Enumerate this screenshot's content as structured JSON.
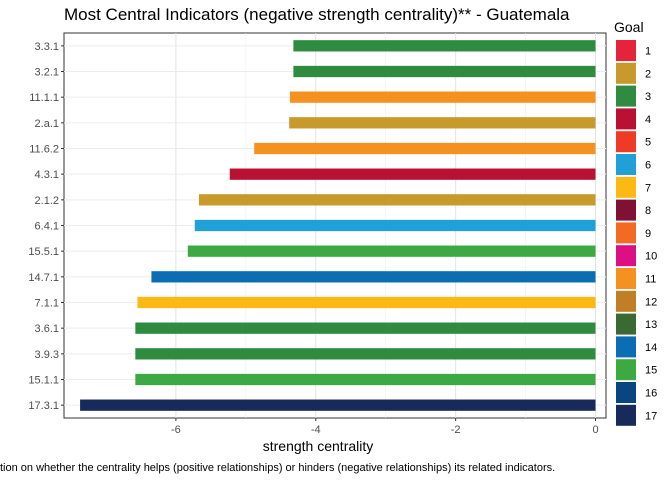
{
  "chart_data": {
    "type": "bar",
    "orientation": "horizontal",
    "title": "Most Central Indicators (negative strength centrality)** - Guatemala",
    "xlabel": "strength centrality",
    "ylabel": "",
    "xlim": [
      -7.6,
      0.15
    ],
    "xticks": [
      -6,
      -4,
      -2,
      0
    ],
    "xtick_labels": [
      "-6",
      "-4",
      "-2",
      "0"
    ],
    "grid": true,
    "legend_position": "right",
    "caption": "tion on whether the centrality helps (positive relationships) or hinders (negative relationships) its related indicators.",
    "bars": [
      {
        "indicator": "3.3.1",
        "value": -4.32,
        "goal": "3"
      },
      {
        "indicator": "3.2.1",
        "value": -4.32,
        "goal": "3"
      },
      {
        "indicator": "11.1.1",
        "value": -4.37,
        "goal": "11"
      },
      {
        "indicator": "2.a.1",
        "value": -4.38,
        "goal": "2"
      },
      {
        "indicator": "11.6.2",
        "value": -4.88,
        "goal": "11"
      },
      {
        "indicator": "4.3.1",
        "value": -5.23,
        "goal": "4"
      },
      {
        "indicator": "2.1.2",
        "value": -5.67,
        "goal": "2"
      },
      {
        "indicator": "6.4.1",
        "value": -5.73,
        "goal": "6"
      },
      {
        "indicator": "15.5.1",
        "value": -5.83,
        "goal": "15"
      },
      {
        "indicator": "14.7.1",
        "value": -6.35,
        "goal": "14"
      },
      {
        "indicator": "7.1.1",
        "value": -6.55,
        "goal": "7"
      },
      {
        "indicator": "3.6.1",
        "value": -6.58,
        "goal": "3"
      },
      {
        "indicator": "3.9.3",
        "value": -6.58,
        "goal": "3"
      },
      {
        "indicator": "15.1.1",
        "value": -6.58,
        "goal": "15"
      },
      {
        "indicator": "17.3.1",
        "value": -7.37,
        "goal": "17"
      }
    ],
    "legend": {
      "title": "Goal",
      "items": [
        {
          "label": "1",
          "color": "#E5243B"
        },
        {
          "label": "2",
          "color": "#C89A2C"
        },
        {
          "label": "3",
          "color": "#2E8B3F"
        },
        {
          "label": "4",
          "color": "#B91133"
        },
        {
          "label": "5",
          "color": "#EF3A25"
        },
        {
          "label": "6",
          "color": "#1FA1D8"
        },
        {
          "label": "7",
          "color": "#FDB913"
        },
        {
          "label": "8",
          "color": "#7F1234"
        },
        {
          "label": "9",
          "color": "#F26A24"
        },
        {
          "label": "10",
          "color": "#DD0F85"
        },
        {
          "label": "11",
          "color": "#F59121"
        },
        {
          "label": "12",
          "color": "#C07E27"
        },
        {
          "label": "13",
          "color": "#3B6932"
        },
        {
          "label": "14",
          "color": "#0B6DB3"
        },
        {
          "label": "15",
          "color": "#3DA943"
        },
        {
          "label": "16",
          "color": "#0B4580"
        },
        {
          "label": "17",
          "color": "#182A59"
        }
      ]
    }
  }
}
